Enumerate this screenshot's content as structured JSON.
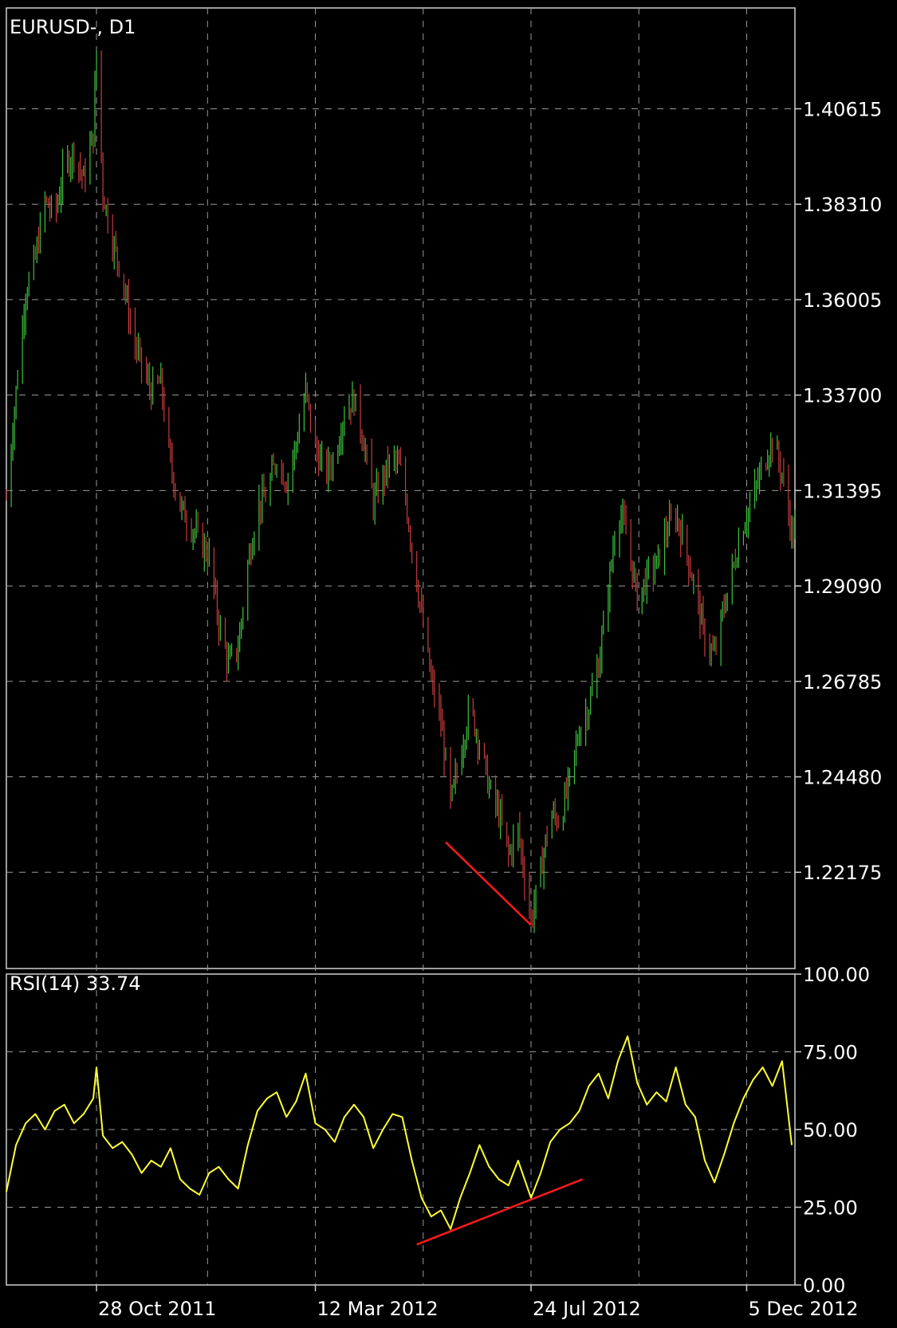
{
  "chart_data": [
    {
      "type": "candlestick",
      "title": "EURUSD-, D1",
      "yticks": [
        "1.40615",
        "1.38310",
        "1.36005",
        "1.33700",
        "1.31395",
        "1.29090",
        "1.26785",
        "1.24480",
        "1.22175"
      ],
      "ylim": [
        1.1985,
        1.4305
      ],
      "xticks": [
        "28 Oct 2011",
        "12 Mar 2012",
        "24 Jul 2012",
        "5 Dec 2012"
      ],
      "xlim": [
        "2011-09-02",
        "2013-01-04"
      ],
      "grid": true,
      "colors": {
        "up": "#3cc43c",
        "down": "#c83c3c",
        "trendline": "#ff1a1a",
        "grid": "#9a9a9a"
      },
      "price_path": [
        [
          "2011-09-02",
          1.312
        ],
        [
          "2011-09-08",
          1.338
        ],
        [
          "2011-09-14",
          1.362
        ],
        [
          "2011-09-20",
          1.37
        ],
        [
          "2011-09-26",
          1.384
        ],
        [
          "2011-10-02",
          1.38
        ],
        [
          "2011-10-08",
          1.392
        ],
        [
          "2011-10-14",
          1.396
        ],
        [
          "2011-10-20",
          1.389
        ],
        [
          "2011-10-26",
          1.4
        ],
        [
          "2011-10-28",
          1.42
        ],
        [
          "2011-11-01",
          1.386
        ],
        [
          "2011-11-07",
          1.374
        ],
        [
          "2011-11-13",
          1.366
        ],
        [
          "2011-11-19",
          1.352
        ],
        [
          "2011-11-25",
          1.344
        ],
        [
          "2011-12-01",
          1.338
        ],
        [
          "2011-12-07",
          1.34
        ],
        [
          "2011-12-13",
          1.32
        ],
        [
          "2011-12-19",
          1.31
        ],
        [
          "2011-12-25",
          1.306
        ],
        [
          "2011-12-31",
          1.302
        ],
        [
          "2012-01-06",
          1.298
        ],
        [
          "2012-01-12",
          1.282
        ],
        [
          "2012-01-18",
          1.272
        ],
        [
          "2012-01-24",
          1.276
        ],
        [
          "2012-01-30",
          1.296
        ],
        [
          "2012-02-05",
          1.31
        ],
        [
          "2012-02-11",
          1.313
        ],
        [
          "2012-02-17",
          1.322
        ],
        [
          "2012-02-23",
          1.316
        ],
        [
          "2012-02-29",
          1.325
        ],
        [
          "2012-03-06",
          1.338
        ],
        [
          "2012-03-12",
          1.324
        ],
        [
          "2012-03-18",
          1.318
        ],
        [
          "2012-03-24",
          1.322
        ],
        [
          "2012-03-30",
          1.333
        ],
        [
          "2012-04-05",
          1.336
        ],
        [
          "2012-04-11",
          1.326
        ],
        [
          "2012-04-17",
          1.311
        ],
        [
          "2012-04-23",
          1.317
        ],
        [
          "2012-04-29",
          1.322
        ],
        [
          "2012-05-05",
          1.318
        ],
        [
          "2012-05-11",
          1.3
        ],
        [
          "2012-05-17",
          1.284
        ],
        [
          "2012-05-23",
          1.268
        ],
        [
          "2012-05-29",
          1.258
        ],
        [
          "2012-06-04",
          1.238
        ],
        [
          "2012-06-10",
          1.25
        ],
        [
          "2012-06-16",
          1.262
        ],
        [
          "2012-06-22",
          1.253
        ],
        [
          "2012-06-28",
          1.242
        ],
        [
          "2012-07-04",
          1.236
        ],
        [
          "2012-07-10",
          1.226
        ],
        [
          "2012-07-16",
          1.232
        ],
        [
          "2012-07-24",
          1.21
        ],
        [
          "2012-07-30",
          1.222
        ],
        [
          "2012-08-05",
          1.236
        ],
        [
          "2012-08-11",
          1.234
        ],
        [
          "2012-08-17",
          1.244
        ],
        [
          "2012-08-23",
          1.256
        ],
        [
          "2012-08-29",
          1.262
        ],
        [
          "2012-09-04",
          1.272
        ],
        [
          "2012-09-10",
          1.29
        ],
        [
          "2012-09-16",
          1.31
        ],
        [
          "2012-09-22",
          1.302
        ],
        [
          "2012-09-28",
          1.288
        ],
        [
          "2012-10-04",
          1.293
        ],
        [
          "2012-10-10",
          1.296
        ],
        [
          "2012-10-16",
          1.304
        ],
        [
          "2012-10-22",
          1.308
        ],
        [
          "2012-10-28",
          1.3
        ],
        [
          "2012-11-03",
          1.29
        ],
        [
          "2012-11-09",
          1.278
        ],
        [
          "2012-11-15",
          1.274
        ],
        [
          "2012-11-21",
          1.286
        ],
        [
          "2012-11-27",
          1.296
        ],
        [
          "2012-12-03",
          1.306
        ],
        [
          "2012-12-09",
          1.312
        ],
        [
          "2012-12-15",
          1.32
        ],
        [
          "2012-12-21",
          1.326
        ],
        [
          "2012-12-27",
          1.318
        ],
        [
          "2013-01-02",
          1.304
        ]
      ],
      "trendline": {
        "start": [
          "2012-06-01",
          1.229
        ],
        "end": [
          "2012-07-24",
          1.209
        ]
      }
    },
    {
      "type": "line",
      "title": "RSI(14) 33.74",
      "yticks": [
        "100.00",
        "75.00",
        "50.00",
        "25.00",
        "0.00"
      ],
      "ylim": [
        0,
        100
      ],
      "xticks": [
        "28 Oct 2011",
        "12 Mar 2012",
        "24 Jul 2012",
        "5 Dec 2012"
      ],
      "grid": true,
      "colors": {
        "line": "#ffff33",
        "trendline": "#ff1a1a"
      },
      "series": [
        {
          "x": [
            "2011-09-02",
            "2011-09-08",
            "2011-09-14",
            "2011-09-20",
            "2011-09-26",
            "2011-10-02",
            "2011-10-08",
            "2011-10-14",
            "2011-10-20",
            "2011-10-26",
            "2011-10-28",
            "2011-11-01",
            "2011-11-07",
            "2011-11-13",
            "2011-11-19",
            "2011-11-25",
            "2011-12-01",
            "2011-12-07",
            "2011-12-13",
            "2011-12-19",
            "2011-12-25",
            "2011-12-31",
            "2012-01-06",
            "2012-01-12",
            "2012-01-18",
            "2012-01-24",
            "2012-01-30",
            "2012-02-05",
            "2012-02-11",
            "2012-02-17",
            "2012-02-23",
            "2012-02-29",
            "2012-03-06",
            "2012-03-12",
            "2012-03-18",
            "2012-03-24",
            "2012-03-30",
            "2012-04-05",
            "2012-04-11",
            "2012-04-17",
            "2012-04-23",
            "2012-04-29",
            "2012-05-05",
            "2012-05-11",
            "2012-05-17",
            "2012-05-23",
            "2012-05-29",
            "2012-06-04",
            "2012-06-10",
            "2012-06-16",
            "2012-06-22",
            "2012-06-28",
            "2012-07-04",
            "2012-07-10",
            "2012-07-16",
            "2012-07-24",
            "2012-07-30",
            "2012-08-05",
            "2012-08-11",
            "2012-08-17",
            "2012-08-23",
            "2012-08-29",
            "2012-09-04",
            "2012-09-10",
            "2012-09-16",
            "2012-09-22",
            "2012-09-28",
            "2012-10-04",
            "2012-10-10",
            "2012-10-16",
            "2012-10-22",
            "2012-10-28",
            "2012-11-03",
            "2012-11-09",
            "2012-11-15",
            "2012-11-21",
            "2012-11-27",
            "2012-12-03",
            "2012-12-09",
            "2012-12-15",
            "2012-12-21",
            "2012-12-27",
            "2013-01-02"
          ],
          "values": [
            30,
            45,
            52,
            55,
            50,
            56,
            58,
            52,
            55,
            60,
            70,
            48,
            44,
            46,
            42,
            36,
            40,
            38,
            44,
            34,
            31,
            29,
            36,
            38,
            34,
            31,
            45,
            56,
            60,
            62,
            54,
            59,
            68,
            52,
            50,
            46,
            54,
            58,
            54,
            44,
            50,
            55,
            54,
            40,
            28,
            22,
            24,
            18,
            28,
            36,
            45,
            38,
            34,
            32,
            40,
            28,
            36,
            46,
            50,
            52,
            56,
            64,
            68,
            60,
            72,
            80,
            65,
            58,
            62,
            59,
            70,
            58,
            54,
            40,
            33,
            42,
            52,
            60,
            66,
            70,
            64,
            72,
            45
          ]
        }
      ],
      "trendline": {
        "start": [
          "2012-05-14",
          13
        ],
        "end": [
          "2012-08-25",
          34
        ]
      }
    }
  ]
}
